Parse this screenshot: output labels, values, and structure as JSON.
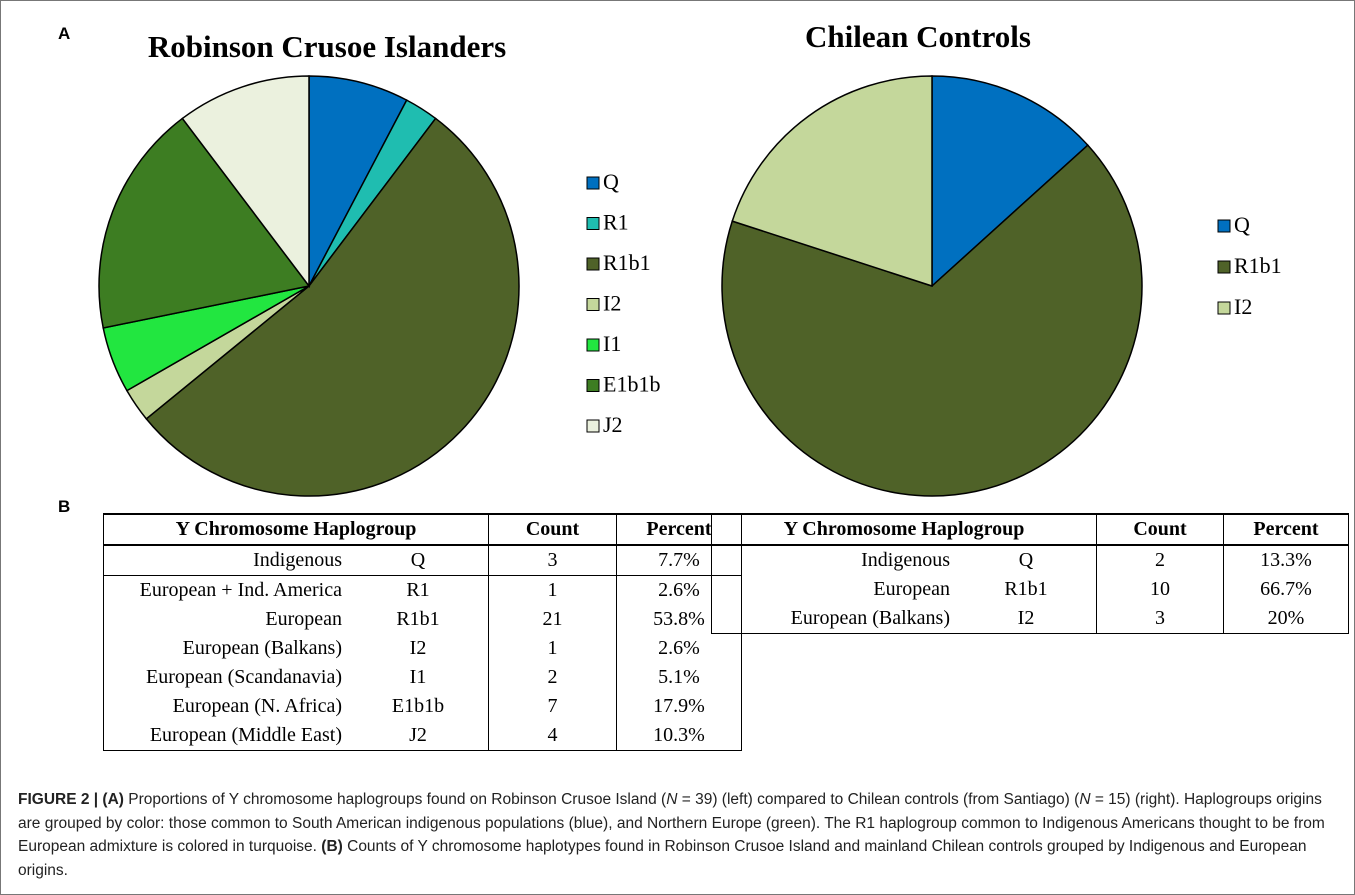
{
  "panel_labels": [
    "A",
    "B"
  ],
  "chart_data": [
    {
      "type": "pie",
      "title": "Robinson Crusoe Islanders",
      "categories": [
        "Q",
        "R1",
        "R1b1",
        "I2",
        "I1",
        "E1b1b",
        "J2"
      ],
      "values": [
        7.7,
        2.6,
        53.8,
        2.6,
        5.1,
        17.9,
        10.3
      ],
      "colors": [
        "#0070c0",
        "#1fbdb0",
        "#4f6228",
        "#c4d79b",
        "#22e640",
        "#3d7d22",
        "#ebf1de"
      ]
    },
    {
      "type": "pie",
      "title": "Chilean Controls",
      "categories": [
        "Q",
        "R1b1",
        "I2"
      ],
      "values": [
        13.3,
        66.7,
        20
      ],
      "colors": [
        "#0070c0",
        "#4f6228",
        "#c4d79b"
      ]
    }
  ],
  "tables": [
    {
      "header": [
        "Y Chromosome Haplogroup",
        "Count",
        "Percent"
      ],
      "rows": [
        [
          "Indigenous",
          "Q",
          "3",
          "7.7%"
        ],
        [
          "European + Ind. America",
          "R1",
          "1",
          "2.6%"
        ],
        [
          "European",
          "R1b1",
          "21",
          "53.8%"
        ],
        [
          "European (Balkans)",
          "I2",
          "1",
          "2.6%"
        ],
        [
          "European (Scandanavia)",
          "I1",
          "2",
          "5.1%"
        ],
        [
          "European (N. Africa)",
          "E1b1b",
          "7",
          "17.9%"
        ],
        [
          "European (Middle East)",
          "J2",
          "4",
          "10.3%"
        ]
      ]
    },
    {
      "header": [
        "Y Chromosome Haplogroup",
        "Count",
        "Percent"
      ],
      "rows": [
        [
          "Indigenous",
          "Q",
          "2",
          "13.3%"
        ],
        [
          "European",
          "R1b1",
          "10",
          "66.7%"
        ],
        [
          "European (Balkans)",
          "I2",
          "3",
          "20%"
        ]
      ]
    }
  ],
  "caption": [
    "FIGURE 2 | (A)",
    " Proportions of Y chromosome haplogroups found on Robinson Crusoe Island (",
    "N",
    " = 39) (left) compared to Chilean controls (from Santiago) (",
    "N",
    " = 15) (right). Haplogroups origins are grouped by color: those common to South American indigenous populations (blue), and Northern Europe (green). The R1 haplogroup common to Indigenous Americans thought to be from European admixture is colored in turquoise. ",
    "(B)",
    " Counts of Y chromosome haplotypes found in Robinson Crusoe Island and mainland Chilean controls grouped by Indigenous and European origins."
  ]
}
